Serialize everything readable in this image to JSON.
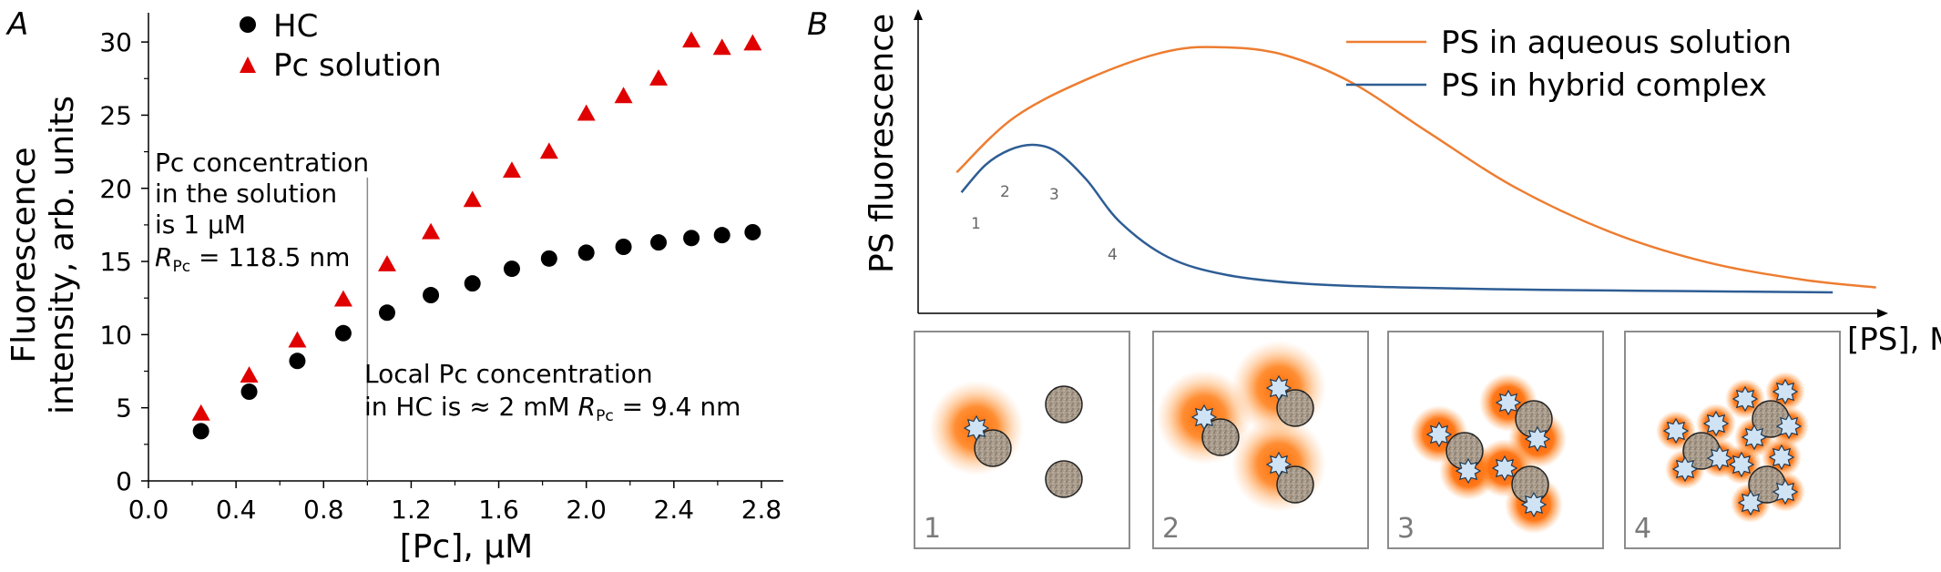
{
  "chart_data": [
    {
      "panel": "A",
      "type": "scatter",
      "xlabel": "[Pc], μM",
      "ylabel_line1": "Fluorescence",
      "ylabel_line2": "intensity, arb. units",
      "xlim": [
        0.0,
        2.9
      ],
      "ylim": [
        0,
        32
      ],
      "xticks": [
        "0.0",
        "0.4",
        "0.8",
        "1.2",
        "1.6",
        "2.0",
        "2.4",
        "2.8"
      ],
      "xtick_values": [
        0.0,
        0.4,
        0.8,
        1.2,
        1.6,
        2.0,
        2.4,
        2.8
      ],
      "yticks": [
        "0",
        "5",
        "10",
        "15",
        "20",
        "25",
        "30"
      ],
      "ytick_values": [
        0,
        5,
        10,
        15,
        20,
        25,
        30
      ],
      "vline_x": 1.0,
      "series": [
        {
          "name": "HC",
          "marker": "circle",
          "color": "#000000",
          "x": [
            0.24,
            0.46,
            0.68,
            0.89,
            1.09,
            1.29,
            1.48,
            1.66,
            1.83,
            2.0,
            2.17,
            2.33,
            2.48,
            2.62,
            2.76
          ],
          "y": [
            3.4,
            6.1,
            8.2,
            10.1,
            11.5,
            12.7,
            13.5,
            14.5,
            15.2,
            15.6,
            16.0,
            16.3,
            16.6,
            16.8,
            17.0
          ]
        },
        {
          "name": "Pc solution",
          "marker": "triangle",
          "color": "#e00000",
          "x": [
            0.24,
            0.46,
            0.68,
            0.89,
            1.09,
            1.29,
            1.48,
            1.66,
            1.83,
            2.0,
            2.17,
            2.33,
            2.48,
            2.62,
            2.76
          ],
          "y": [
            4.6,
            7.2,
            9.6,
            12.4,
            14.8,
            17.0,
            19.2,
            21.2,
            22.5,
            25.1,
            26.3,
            27.5,
            30.1,
            29.6,
            29.9
          ]
        }
      ],
      "annotation_left": [
        "Pc concentration",
        "in the solution",
        "is 1 μM"
      ],
      "annotation_left_r": {
        "symbol": "R",
        "sub": "Pc",
        "rest": " = 118.5 nm"
      },
      "annotation_right_line1": "Local Pc concentration",
      "annotation_right_line2": "in HC is ≈ 2 mM ",
      "annotation_right_r": {
        "symbol": "R",
        "sub": "Pc",
        "rest": " = 9.4 nm"
      }
    },
    {
      "panel": "B",
      "type": "line",
      "xlabel": "[PS], M",
      "ylabel": "PS fluorescence",
      "schematic": true,
      "xlim": [
        0,
        1
      ],
      "ylim": [
        0,
        1
      ],
      "series": [
        {
          "name": "PS in aqueous solution",
          "color": "#ed7d31",
          "x": [
            0.04,
            0.1,
            0.18,
            0.26,
            0.32,
            0.38,
            0.45,
            0.53,
            0.62,
            0.72,
            0.82,
            0.92,
            0.995
          ],
          "y": [
            0.5,
            0.72,
            0.88,
            0.985,
            1.0,
            0.97,
            0.86,
            0.66,
            0.44,
            0.26,
            0.14,
            0.07,
            0.04
          ]
        },
        {
          "name": "PS in hybrid complex",
          "color": "#2e5d94",
          "x": [
            0.045,
            0.07,
            0.095,
            0.12,
            0.145,
            0.175,
            0.21,
            0.26,
            0.32,
            0.4,
            0.5,
            0.65,
            0.8,
            0.95
          ],
          "y": [
            0.42,
            0.53,
            0.59,
            0.61,
            0.58,
            0.47,
            0.3,
            0.16,
            0.09,
            0.055,
            0.04,
            0.03,
            0.025,
            0.02
          ]
        }
      ],
      "curve_labels": [
        "1",
        "2",
        "3",
        "4"
      ],
      "step_panels": [
        {
          "label": "1",
          "free_nc": 2,
          "loaded_nc": 1,
          "ps_per_loaded": 1
        },
        {
          "label": "2",
          "free_nc": 0,
          "loaded_nc": 3,
          "ps_per_loaded": 1
        },
        {
          "label": "3",
          "free_nc": 0,
          "loaded_nc": 3,
          "ps_per_loaded": 2
        },
        {
          "label": "4",
          "free_nc": 0,
          "loaded_nc": 3,
          "ps_per_loaded": 4
        }
      ]
    }
  ],
  "colors": {
    "glow": "#ff6a00",
    "ps_star": "#cfe3f4",
    "nc_fill": "#a49584",
    "frame": "#8c8c8c"
  }
}
